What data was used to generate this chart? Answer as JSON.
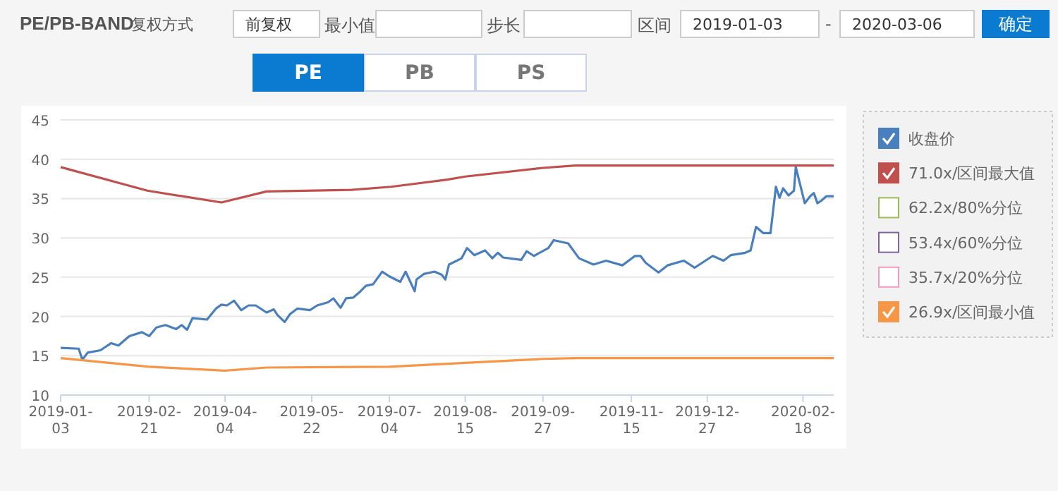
{
  "chart_data": {
    "type": "line",
    "title": "PE/PB-BAND",
    "annotations": [
      "复权方式",
      "前复权",
      "最小值",
      "步长",
      "区间",
      "2019-01-03",
      "-",
      "2020-03-06",
      "确定",
      "PE",
      "PB",
      "PS"
    ],
    "xlim": [
      "2019-01-03",
      "2020-03-06"
    ],
    "xticks": [
      "2019-01-03",
      "2019-02-21",
      "2019-04-04",
      "2019-05-22",
      "2019-07-04",
      "2019-08-15",
      "2019-09-27",
      "2019-11-15",
      "2019-12-27",
      "2020-02-18"
    ],
    "ylim": [
      10,
      45
    ],
    "yticks": [
      10,
      15,
      20,
      25,
      30,
      35,
      40,
      45
    ],
    "grid": "y",
    "legend": "right",
    "series": [
      {
        "name": "收盘价",
        "color": "#4a7fbd",
        "x": [
          "2019-01-03",
          "2019-01-13",
          "2019-01-15",
          "2019-01-18",
          "2019-01-25",
          "2019-01-31",
          "2019-02-04",
          "2019-02-10",
          "2019-02-17",
          "2019-02-21",
          "2019-02-25",
          "2019-03-02",
          "2019-03-08",
          "2019-03-11",
          "2019-03-14",
          "2019-03-17",
          "2019-03-25",
          "2019-03-30",
          "2019-04-02",
          "2019-04-05",
          "2019-04-09",
          "2019-04-13",
          "2019-04-17",
          "2019-04-21",
          "2019-04-27",
          "2019-05-01",
          "2019-05-03",
          "2019-05-07",
          "2019-05-10",
          "2019-05-14",
          "2019-05-21",
          "2019-05-25",
          "2019-05-31",
          "2019-06-03",
          "2019-06-07",
          "2019-06-10",
          "2019-06-14",
          "2019-06-18",
          "2019-06-21",
          "2019-06-25",
          "2019-06-30",
          "2019-07-04",
          "2019-07-10",
          "2019-07-13",
          "2019-07-16",
          "2019-07-18",
          "2019-07-19",
          "2019-07-23",
          "2019-07-29",
          "2019-08-02",
          "2019-08-04",
          "2019-08-06",
          "2019-08-13",
          "2019-08-16",
          "2019-08-20",
          "2019-08-26",
          "2019-08-30",
          "2019-09-02",
          "2019-09-05",
          "2019-09-15",
          "2019-09-18",
          "2019-09-22",
          "2019-09-30",
          "2019-10-03",
          "2019-10-11",
          "2019-10-17",
          "2019-10-25",
          "2019-11-01",
          "2019-11-10",
          "2019-11-17",
          "2019-11-20",
          "2019-11-23",
          "2019-11-30",
          "2019-12-05",
          "2019-12-14",
          "2019-12-20",
          "2019-12-30",
          "2020-01-05",
          "2020-01-09",
          "2020-01-17",
          "2020-01-20",
          "2020-01-23",
          "2020-01-27",
          "2020-01-31",
          "2020-02-03",
          "2020-02-05",
          "2020-02-07",
          "2020-02-10",
          "2020-02-13",
          "2020-02-14",
          "2020-02-19",
          "2020-02-22",
          "2020-02-24",
          "2020-02-26",
          "2020-02-28",
          "2020-03-02",
          "2020-03-06"
        ],
        "values": [
          16.0,
          15.9,
          14.5,
          15.4,
          15.7,
          16.6,
          16.3,
          17.5,
          18.0,
          17.5,
          18.6,
          18.9,
          18.4,
          18.9,
          18.3,
          19.8,
          19.6,
          21.0,
          21.5,
          21.4,
          22.0,
          20.8,
          21.4,
          21.4,
          20.5,
          20.9,
          20.2,
          19.3,
          20.3,
          21.0,
          20.8,
          21.4,
          21.8,
          22.3,
          21.1,
          22.3,
          22.4,
          23.2,
          23.9,
          24.1,
          25.7,
          25.1,
          24.4,
          25.7,
          24.2,
          23.2,
          24.7,
          25.4,
          25.7,
          25.3,
          24.7,
          26.6,
          27.4,
          28.7,
          27.8,
          28.4,
          27.4,
          28.1,
          27.5,
          27.2,
          28.3,
          27.7,
          28.7,
          29.7,
          29.3,
          27.4,
          26.6,
          27.1,
          26.5,
          27.7,
          27.7,
          26.8,
          25.6,
          26.5,
          27.1,
          26.2,
          27.7,
          27.1,
          27.8,
          28.1,
          28.4,
          31.4,
          30.6,
          30.6,
          36.5,
          35.1,
          36.3,
          35.4,
          36.0,
          39.0,
          34.4,
          35.3,
          35.7,
          34.4,
          34.7,
          35.3,
          35.3
        ]
      },
      {
        "name": "71.0x/区间最大值",
        "color": "#c0504d",
        "x": [
          "2019-01-03",
          "2019-02-20",
          "2019-04-02",
          "2019-04-27",
          "2019-06-13",
          "2019-07-05",
          "2019-08-05",
          "2019-08-15",
          "2019-09-27",
          "2019-10-15",
          "2020-03-06"
        ],
        "values": [
          39.0,
          36.0,
          34.5,
          35.9,
          36.1,
          36.5,
          37.4,
          37.8,
          38.9,
          39.2,
          39.2
        ]
      },
      {
        "name": "62.2x/80%分位",
        "color": "#9bbb59"
      },
      {
        "name": "53.4x/60%分位",
        "color": "#8064a2"
      },
      {
        "name": "35.7x/20%分位",
        "color": "#f49ac1"
      },
      {
        "name": "26.9x/区间最小值",
        "color": "#f79646",
        "x": [
          "2019-01-03",
          "2019-02-21",
          "2019-04-04",
          "2019-04-27",
          "2019-07-04",
          "2019-08-15",
          "2019-09-27",
          "2019-10-15",
          "2020-03-06"
        ],
        "values": [
          14.7,
          13.6,
          13.1,
          13.5,
          13.6,
          14.1,
          14.6,
          14.7,
          14.7
        ]
      }
    ]
  }
}
